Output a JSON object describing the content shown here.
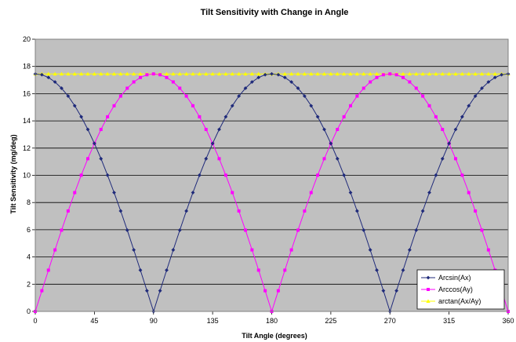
{
  "chart_data": {
    "type": "line",
    "title": "Tilt Sensitivity with Change in Angle",
    "xlabel": "Tilt Angle (degrees)",
    "ylabel": "Tilt Sensitivity (mg/deg)",
    "xlim": [
      0,
      360
    ],
    "ylim": [
      0,
      20
    ],
    "xticks": [
      0,
      45,
      90,
      135,
      180,
      225,
      270,
      315,
      360
    ],
    "yticks": [
      0,
      2,
      4,
      6,
      8,
      10,
      12,
      14,
      16,
      18,
      20
    ],
    "grid": "horizontal",
    "legend_position": "bottom-right",
    "plot_background": "#c0c0c0",
    "x": [
      0,
      5,
      10,
      15,
      20,
      25,
      30,
      35,
      40,
      45,
      50,
      55,
      60,
      65,
      70,
      75,
      80,
      85,
      90,
      95,
      100,
      105,
      110,
      115,
      120,
      125,
      130,
      135,
      140,
      145,
      150,
      155,
      160,
      165,
      170,
      175,
      180,
      185,
      190,
      195,
      200,
      205,
      210,
      215,
      220,
      225,
      230,
      235,
      240,
      245,
      250,
      255,
      260,
      265,
      270,
      275,
      280,
      285,
      290,
      295,
      300,
      305,
      310,
      315,
      320,
      325,
      330,
      335,
      340,
      345,
      350,
      355,
      360
    ],
    "series": [
      {
        "name": "Arcsin(Ax)",
        "color": "#1f2a7a",
        "marker": "diamond",
        "values": [
          17.45,
          17.39,
          17.19,
          16.86,
          16.4,
          15.82,
          15.11,
          14.3,
          13.37,
          12.34,
          11.22,
          10.01,
          8.73,
          7.38,
          5.97,
          4.52,
          3.03,
          1.52,
          0.0,
          1.52,
          3.03,
          4.52,
          5.97,
          7.38,
          8.73,
          10.01,
          11.22,
          12.34,
          13.37,
          14.3,
          15.11,
          15.82,
          16.4,
          16.86,
          17.19,
          17.39,
          17.45,
          17.39,
          17.19,
          16.86,
          16.4,
          15.82,
          15.11,
          14.3,
          13.37,
          12.34,
          11.22,
          10.01,
          8.73,
          7.38,
          5.97,
          4.52,
          3.03,
          1.52,
          0.0,
          1.52,
          3.03,
          4.52,
          5.97,
          7.38,
          8.73,
          10.01,
          11.22,
          12.34,
          13.37,
          14.3,
          15.11,
          15.82,
          16.4,
          16.86,
          17.19,
          17.39,
          17.45
        ]
      },
      {
        "name": "Arccos(Ay)",
        "color": "#ff00ff",
        "marker": "square",
        "values": [
          0.0,
          1.52,
          3.03,
          4.52,
          5.97,
          7.38,
          8.73,
          10.01,
          11.22,
          12.34,
          13.37,
          14.3,
          15.11,
          15.82,
          16.4,
          16.86,
          17.19,
          17.39,
          17.45,
          17.39,
          17.19,
          16.86,
          16.4,
          15.82,
          15.11,
          14.3,
          13.37,
          12.34,
          11.22,
          10.01,
          8.73,
          7.38,
          5.97,
          4.52,
          3.03,
          1.52,
          0.0,
          1.52,
          3.03,
          4.52,
          5.97,
          7.38,
          8.73,
          10.01,
          11.22,
          12.34,
          13.37,
          14.3,
          15.11,
          15.82,
          16.4,
          16.86,
          17.19,
          17.39,
          17.45,
          17.39,
          17.19,
          16.86,
          16.4,
          15.82,
          15.11,
          14.3,
          13.37,
          12.34,
          11.22,
          10.01,
          8.73,
          7.38,
          5.97,
          4.52,
          3.03,
          1.52,
          0.0
        ]
      },
      {
        "name": "arctan(Ax/Ay)",
        "color": "#ffff00",
        "marker": "triangle",
        "values": [
          17.45,
          17.45,
          17.45,
          17.45,
          17.45,
          17.45,
          17.45,
          17.45,
          17.45,
          17.45,
          17.45,
          17.45,
          17.45,
          17.45,
          17.45,
          17.45,
          17.45,
          17.45,
          17.45,
          17.45,
          17.45,
          17.45,
          17.45,
          17.45,
          17.45,
          17.45,
          17.45,
          17.45,
          17.45,
          17.45,
          17.45,
          17.45,
          17.45,
          17.45,
          17.45,
          17.45,
          17.45,
          17.45,
          17.45,
          17.45,
          17.45,
          17.45,
          17.45,
          17.45,
          17.45,
          17.45,
          17.45,
          17.45,
          17.45,
          17.45,
          17.45,
          17.45,
          17.45,
          17.45,
          17.45,
          17.45,
          17.45,
          17.45,
          17.45,
          17.45,
          17.45,
          17.45,
          17.45,
          17.45,
          17.45,
          17.45,
          17.45,
          17.45,
          17.45,
          17.45,
          17.45,
          17.45,
          17.45
        ]
      }
    ]
  }
}
